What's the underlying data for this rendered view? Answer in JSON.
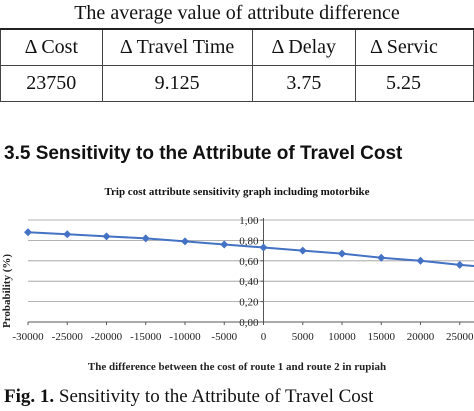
{
  "table": {
    "caption": "The average value of attribute difference",
    "headers": [
      "Δ Cost",
      "Δ Travel Time",
      "Δ Delay",
      "Δ Servic"
    ],
    "rows": [
      [
        "23750",
        "9.125",
        "3.75",
        "5.25"
      ]
    ]
  },
  "section_heading": "3.5 Sensitivity to the Attribute of Travel Cost",
  "figure": {
    "label": "Fig. 1.",
    "caption": " Sensitivity to the Attribute of Travel Cost"
  },
  "chart_data": {
    "type": "line",
    "title": "Trip cost attribute sensitivity graph including motorbike",
    "xlabel": "The difference between the cost of route 1 and route 2 in rupiah",
    "ylabel": "Probability (%)",
    "xlim": [
      -30000,
      30000
    ],
    "ylim": [
      0,
      1
    ],
    "x_ticks": [
      "-30000",
      "-25000",
      "-20000",
      "-15000",
      "-10000",
      "-5000",
      "0",
      "5000",
      "10000",
      "15000",
      "20000",
      "25000"
    ],
    "y_ticks": [
      "0,00",
      "0,20",
      "0,40",
      "0,60",
      "0,80",
      "1,00"
    ],
    "grid": "horizontal",
    "series": [
      {
        "color": "#4472c4",
        "x": [
          -30000,
          -25000,
          -20000,
          -15000,
          -10000,
          -5000,
          0,
          5000,
          10000,
          15000,
          20000,
          25000,
          30000
        ],
        "y": [
          0.88,
          0.86,
          0.84,
          0.82,
          0.79,
          0.76,
          0.73,
          0.7,
          0.67,
          0.63,
          0.6,
          0.56,
          0.53
        ]
      }
    ]
  }
}
